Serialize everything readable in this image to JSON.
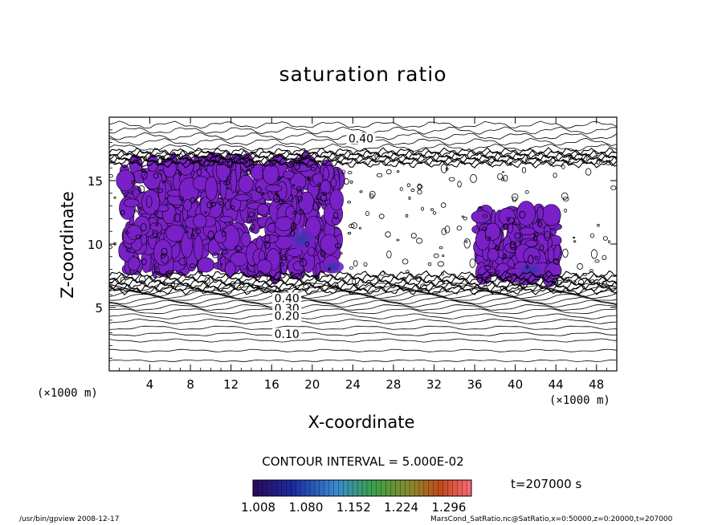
{
  "chart_data": {
    "type": "contour",
    "title": "saturation ratio",
    "xlabel": "X-coordinate",
    "ylabel": "Z-coordinate",
    "x_unit_left": "(×1000 m)",
    "x_unit_right": "(×1000 m)",
    "xlim": [
      0,
      50
    ],
    "ylim": [
      0,
      20
    ],
    "x_ticks": [
      4,
      8,
      12,
      16,
      20,
      24,
      28,
      32,
      36,
      40,
      44,
      48
    ],
    "y_ticks": [
      5,
      10,
      15
    ],
    "contour_labels": [
      {
        "text": "0.40",
        "x": 24.8,
        "z": 18.2
      },
      {
        "text": "0.40",
        "x": 17.5,
        "z": 5.6
      },
      {
        "text": "0.30",
        "x": 17.5,
        "z": 4.8
      },
      {
        "text": "0.20",
        "x": 17.5,
        "z": 4.2
      },
      {
        "text": "0.10",
        "x": 17.5,
        "z": 2.8
      }
    ],
    "contour_interval": "CONTOUR INTERVAL = 5.000E-02",
    "time_label": "t=207000 s",
    "colorbar_ticks": [
      "1.008",
      "1.080",
      "1.152",
      "1.224",
      "1.296"
    ],
    "colorbar_range": [
      1.0,
      1.33
    ],
    "supersaturated_regions": [
      {
        "x": [
          1.5,
          7.5
        ],
        "z": [
          8.0,
          16.5
        ]
      },
      {
        "x": [
          7.5,
          15.0
        ],
        "z": [
          8.0,
          16.5
        ]
      },
      {
        "x": [
          15.0,
          22.5
        ],
        "z": [
          7.5,
          16.5
        ]
      },
      {
        "x": [
          36.5,
          44.0
        ],
        "z": [
          7.5,
          12.5
        ]
      }
    ],
    "colors": {
      "fill": "#7a20c8",
      "core": "#3c2aa0",
      "line": "#000000"
    }
  },
  "footer": {
    "left": "/usr/bin/gpview   2008-12-17",
    "right": "MarsCond_SatRatio.nc@SatRatio,x=0:50000,z=0:20000,t=207000"
  }
}
